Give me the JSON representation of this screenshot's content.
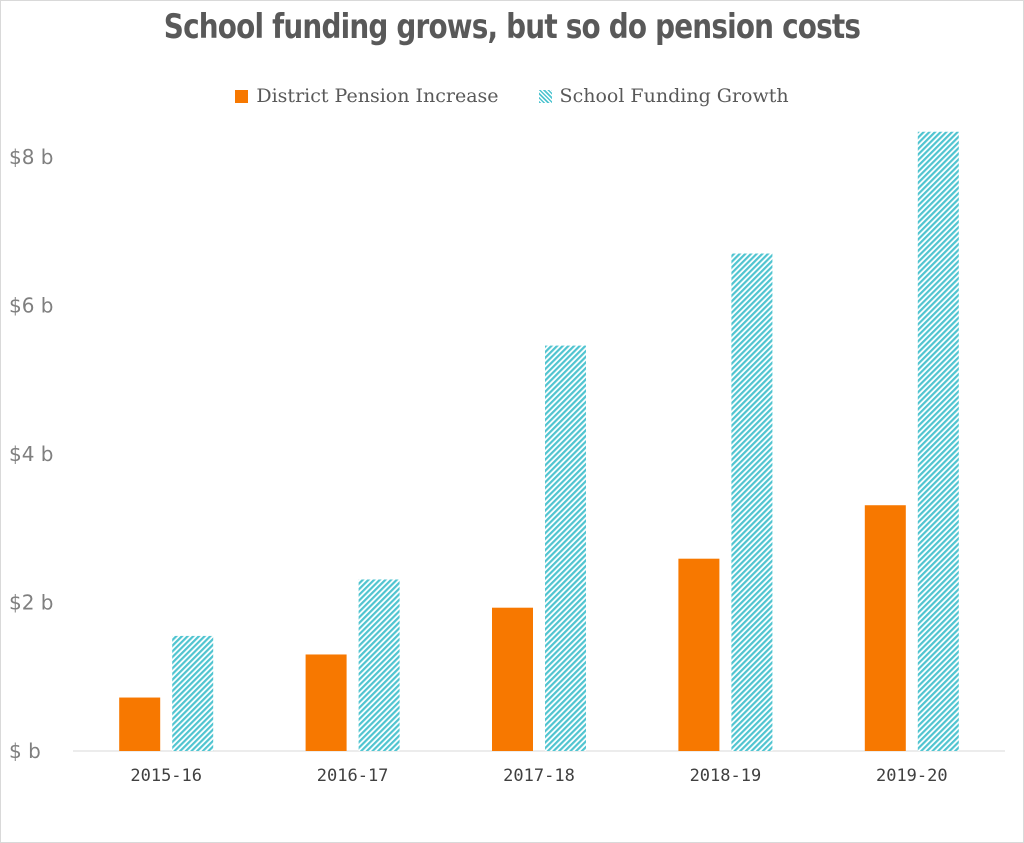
{
  "chart_data": {
    "type": "bar",
    "title": "School funding grows, but so do pension costs",
    "categories": [
      "2015-16",
      "2016-17",
      "2017-18",
      "2018-19",
      "2019-20"
    ],
    "series": [
      {
        "name": "District Pension Increase",
        "values": [
          0.72,
          1.3,
          1.93,
          2.59,
          3.31
        ],
        "color": "#f77800",
        "pattern": "solid"
      },
      {
        "name": "School Funding Growth",
        "values": [
          1.55,
          2.31,
          5.46,
          6.7,
          8.34
        ],
        "color": "#4fc4d0",
        "pattern": "hatched"
      }
    ],
    "yticks": [
      0,
      2,
      4,
      6,
      8
    ],
    "ytick_labels": [
      "$ b",
      "$2 b",
      "$4 b",
      "$6 b",
      "$8 b"
    ],
    "ylim": [
      0,
      8
    ],
    "xlabel": "",
    "ylabel": "",
    "grid": false,
    "legend_position": "top"
  }
}
